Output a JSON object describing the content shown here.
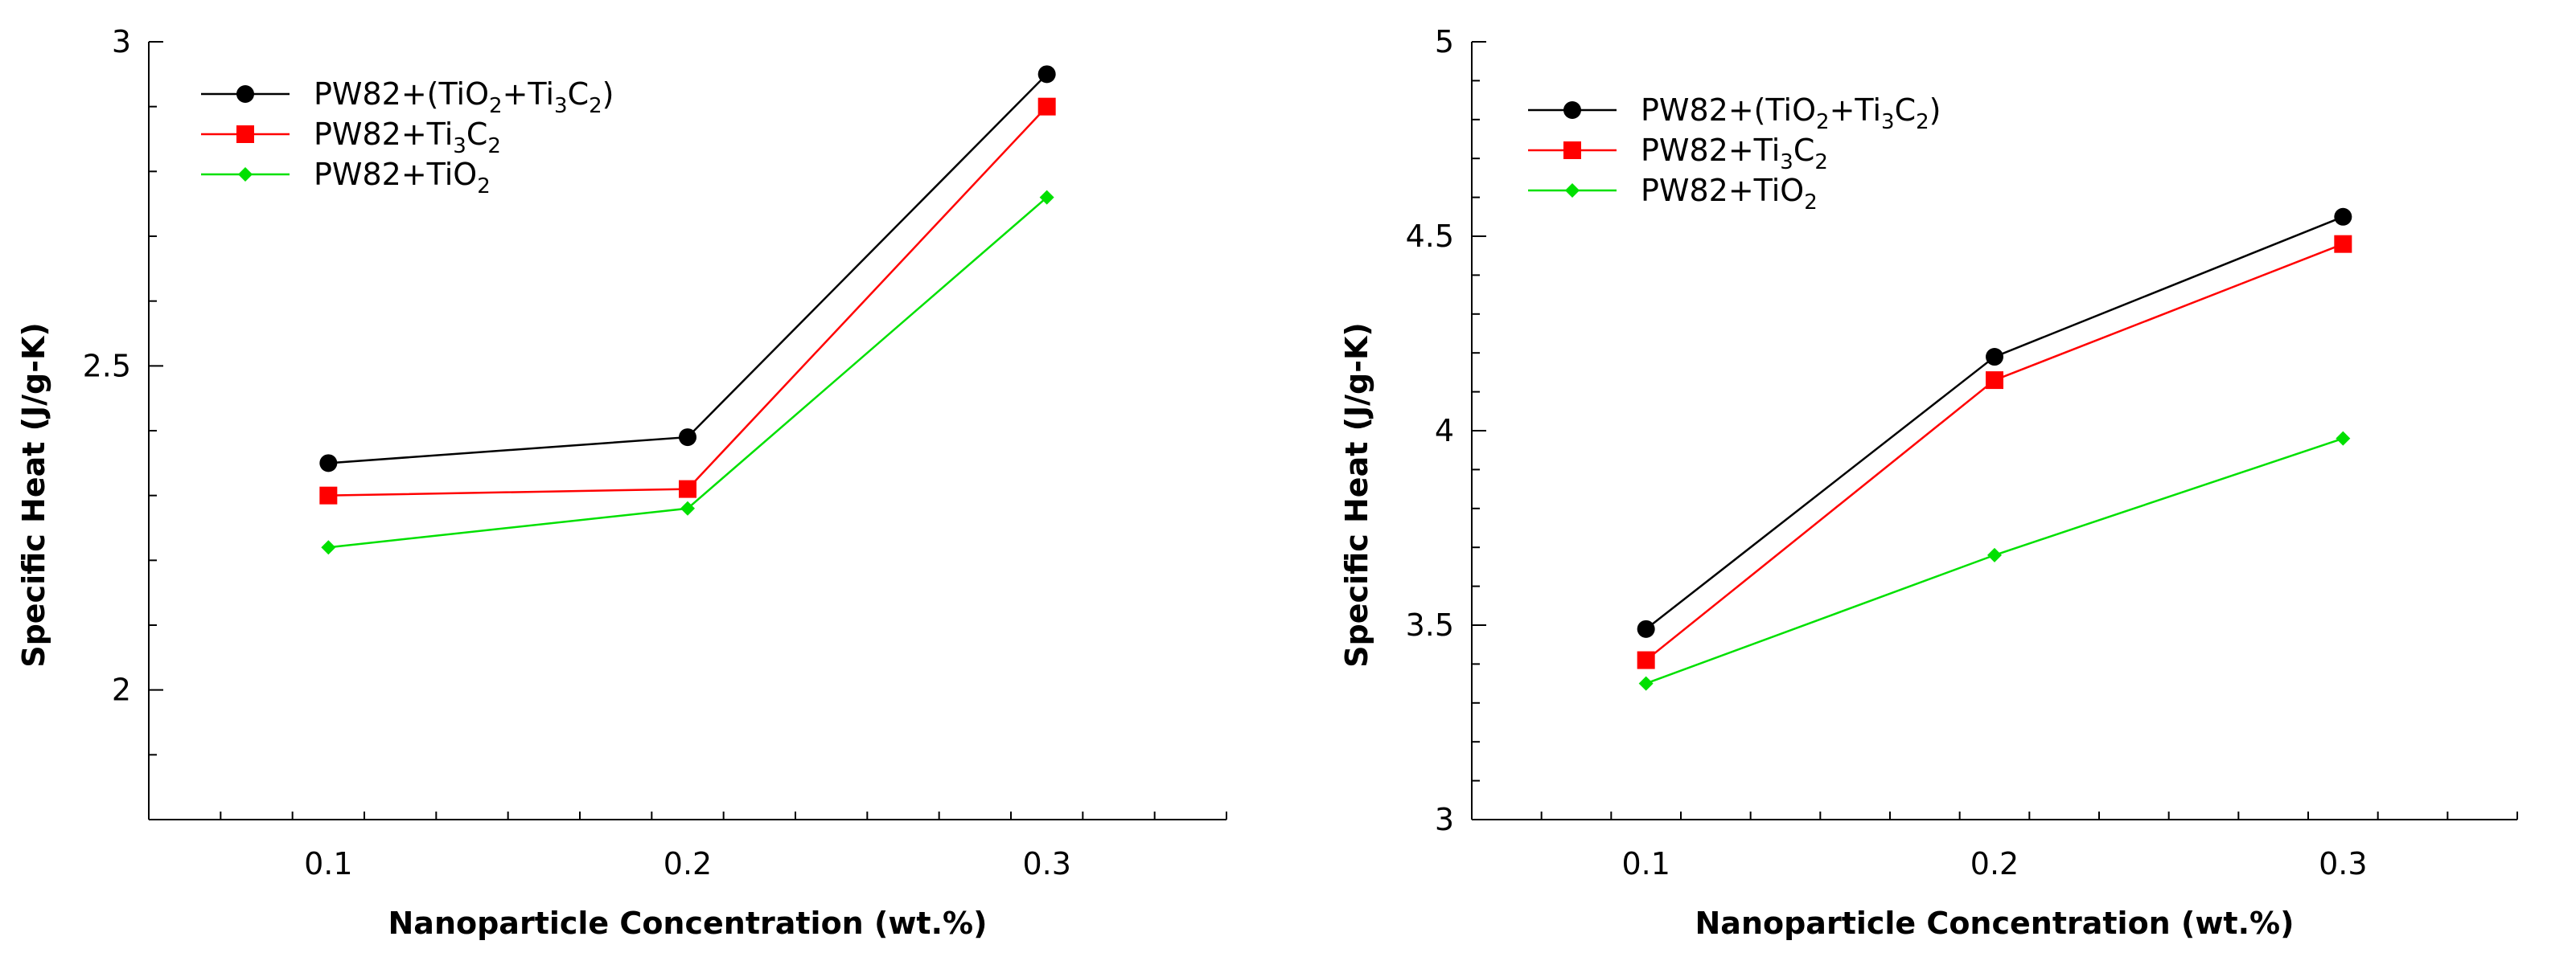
{
  "chart_data": [
    {
      "type": "line",
      "xlabel": "Nanoparticle Concentration (wt.%)",
      "ylabel": "Specific Heat (J/g-K)",
      "xlim": [
        0.05,
        0.35
      ],
      "ylim": [
        1.8,
        3.0
      ],
      "xticks": [
        "0.1",
        "0.2",
        "0.3"
      ],
      "yticks": [
        "2",
        "2.5",
        "3"
      ],
      "x": [
        0.1,
        0.2,
        0.3
      ],
      "legend_position": "top-left",
      "grid": false,
      "series": [
        {
          "name": "PW82+(TiO2+Ti3C2)",
          "label_parts": [
            [
              "PW82+(TiO",
              "n"
            ],
            [
              "2",
              "sub"
            ],
            [
              "+Ti",
              "n"
            ],
            [
              "3",
              "sub"
            ],
            [
              "C",
              "n"
            ],
            [
              "2",
              "sub"
            ],
            [
              ")",
              "n"
            ]
          ],
          "values": [
            2.35,
            2.39,
            2.95
          ],
          "color": "#000000",
          "marker": "circle"
        },
        {
          "name": "PW82+Ti3C2",
          "label_parts": [
            [
              "PW82+Ti",
              "n"
            ],
            [
              "3",
              "sub"
            ],
            [
              "C",
              "n"
            ],
            [
              "2",
              "sub"
            ]
          ],
          "values": [
            2.3,
            2.31,
            2.9
          ],
          "color": "#ff0000",
          "marker": "square"
        },
        {
          "name": "PW82+TiO2",
          "label_parts": [
            [
              "PW82+TiO",
              "n"
            ],
            [
              "2",
              "sub"
            ]
          ],
          "values": [
            2.22,
            2.28,
            2.76
          ],
          "color": "#00e000",
          "marker": "diamond"
        }
      ]
    },
    {
      "type": "line",
      "xlabel": "Nanoparticle Concentration (wt.%)",
      "ylabel": "Specific Heat (J/g-K)",
      "xlim": [
        0.05,
        0.35
      ],
      "ylim": [
        3.0,
        5.0
      ],
      "xticks": [
        "0.1",
        "0.2",
        "0.3"
      ],
      "yticks": [
        "3",
        "3.5",
        "4",
        "4.5",
        "5"
      ],
      "x": [
        0.1,
        0.2,
        0.3
      ],
      "legend_position": "top-left",
      "grid": false,
      "series": [
        {
          "name": "PW82+(TiO2+Ti3C2)",
          "label_parts": [
            [
              "PW82+(TiO",
              "n"
            ],
            [
              "2",
              "sub"
            ],
            [
              "+Ti",
              "n"
            ],
            [
              "3",
              "sub"
            ],
            [
              "C",
              "n"
            ],
            [
              "2",
              "sub"
            ],
            [
              ")",
              "n"
            ]
          ],
          "values": [
            3.49,
            4.19,
            4.55
          ],
          "color": "#000000",
          "marker": "circle"
        },
        {
          "name": "PW82+Ti3C2",
          "label_parts": [
            [
              "PW82+Ti",
              "n"
            ],
            [
              "3",
              "sub"
            ],
            [
              "C",
              "n"
            ],
            [
              "2",
              "sub"
            ]
          ],
          "values": [
            3.41,
            4.13,
            4.48
          ],
          "color": "#ff0000",
          "marker": "square"
        },
        {
          "name": "PW82+TiO2",
          "label_parts": [
            [
              "PW82+TiO",
              "n"
            ],
            [
              "2",
              "sub"
            ]
          ],
          "values": [
            3.35,
            3.68,
            3.98
          ],
          "color": "#00e000",
          "marker": "diamond"
        }
      ]
    }
  ]
}
